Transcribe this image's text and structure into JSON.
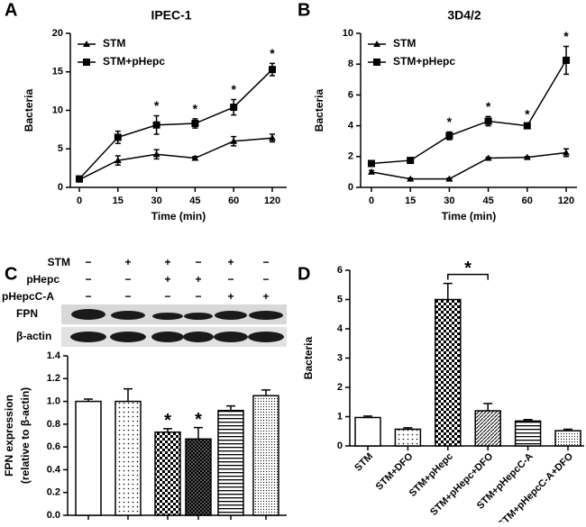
{
  "chart_data": [
    {
      "type": "line",
      "panel": "A",
      "title": "IPEC-1",
      "xlabel": "Time (min)",
      "ylabel": "Bacteria",
      "categories": [
        "0",
        "15",
        "30",
        "45",
        "60",
        "120"
      ],
      "ylim": [
        0,
        20
      ],
      "yticks": [
        0,
        5,
        10,
        15,
        20
      ],
      "legend": "upper left",
      "series": [
        {
          "name": "STM",
          "color": "#000000",
          "marker": "triangle",
          "values": [
            1.0,
            3.5,
            4.3,
            3.8,
            6.0,
            6.4
          ],
          "errors": [
            0.3,
            0.6,
            0.6,
            0.2,
            0.6,
            0.5
          ],
          "significance": [
            null,
            null,
            null,
            null,
            null,
            null
          ]
        },
        {
          "name": "STM+pHepc",
          "color": "#000000",
          "marker": "square",
          "values": [
            1.1,
            6.5,
            8.1,
            8.3,
            10.4,
            15.3
          ],
          "errors": [
            0.3,
            0.8,
            1.2,
            0.6,
            1.0,
            0.8
          ],
          "significance": [
            null,
            null,
            "*",
            "*",
            "*",
            "*"
          ]
        }
      ]
    },
    {
      "type": "line",
      "panel": "B",
      "title": "3D4/2",
      "xlabel": "Time (min)",
      "ylabel": "Bacteria",
      "categories": [
        "0",
        "15",
        "30",
        "45",
        "60",
        "120"
      ],
      "ylim": [
        0,
        10
      ],
      "yticks": [
        0,
        2,
        4,
        6,
        8,
        10
      ],
      "legend": "upper left",
      "series": [
        {
          "name": "STM",
          "color": "#000000",
          "marker": "triangle",
          "values": [
            1.0,
            0.55,
            0.55,
            1.9,
            1.95,
            2.25
          ],
          "errors": [
            0.1,
            0.05,
            0.05,
            0.05,
            0.05,
            0.25
          ],
          "significance": [
            null,
            null,
            null,
            null,
            null,
            null
          ]
        },
        {
          "name": "STM+pHepc",
          "color": "#000000",
          "marker": "square",
          "values": [
            1.55,
            1.75,
            3.35,
            4.3,
            4.0,
            8.25
          ],
          "errors": [
            0.1,
            0.15,
            0.25,
            0.3,
            0.1,
            0.9
          ],
          "significance": [
            null,
            null,
            "*",
            "*",
            "*",
            "*"
          ]
        }
      ]
    },
    {
      "type": "bar",
      "panel": "C",
      "ylabel": [
        "FPN expression",
        "(relative to β-actin)"
      ],
      "blot": {
        "conditions": [
          {
            "name": "STM",
            "signs": [
              "−",
              "+",
              "+",
              "−",
              "+",
              "−"
            ]
          },
          {
            "name": "pHepc",
            "signs": [
              "−",
              "−",
              "+",
              "+",
              "−",
              "−"
            ]
          },
          {
            "name": "pHepcC-A",
            "signs": [
              "−",
              "−",
              "−",
              "−",
              "+",
              "+"
            ]
          }
        ],
        "bands": [
          "FPN",
          "β-actin"
        ]
      },
      "categories": [
        null,
        null,
        null,
        null,
        null,
        null
      ],
      "values": [
        1.0,
        1.0,
        0.73,
        0.67,
        0.92,
        1.05
      ],
      "errors": [
        0.02,
        0.11,
        0.03,
        0.1,
        0.04,
        0.05
      ],
      "significance": [
        null,
        null,
        "*",
        "*",
        null,
        null
      ],
      "patterns": [
        "white",
        "dots",
        "checker",
        "dark-checker",
        "hlines",
        "fine-dots"
      ],
      "ylim": [
        0,
        1.4
      ],
      "yticks": [
        {
          "value": 0,
          "label": "0.0"
        },
        {
          "value": 0.2,
          "label": "0.2"
        },
        {
          "value": 0.4,
          "label": "0.4"
        },
        {
          "value": 0.6,
          "label": "0.6"
        },
        {
          "value": 0.8,
          "label": "0.8"
        },
        {
          "value": 1,
          "label": "1.0"
        },
        {
          "value": 1.2,
          "label": "1.2"
        },
        {
          "value": 1.4,
          "label": "1.4"
        }
      ]
    },
    {
      "type": "bar",
      "panel": "D",
      "ylabel": [
        "Bacteria"
      ],
      "categories": [
        "STM",
        "STM+DFO",
        "STM+pHepc",
        "STM+pHepc+DFO",
        "STM+pHepcC-A",
        "STM+pHepcC-A+DFO"
      ],
      "values": [
        0.97,
        0.57,
        5.0,
        1.2,
        0.85,
        0.52
      ],
      "errors": [
        0.05,
        0.05,
        0.55,
        0.25,
        0.05,
        0.05
      ],
      "significance": [
        null,
        null,
        null,
        null,
        null,
        null
      ],
      "comparisons": [
        {
          "from": 2,
          "to": 3,
          "label": "*"
        }
      ],
      "patterns": [
        "white",
        "dots",
        "checker",
        "diag",
        "hlines",
        "fine-dots"
      ],
      "ylim": [
        0,
        6
      ],
      "yticks": [
        0,
        1,
        2,
        3,
        4,
        5,
        6
      ]
    }
  ]
}
